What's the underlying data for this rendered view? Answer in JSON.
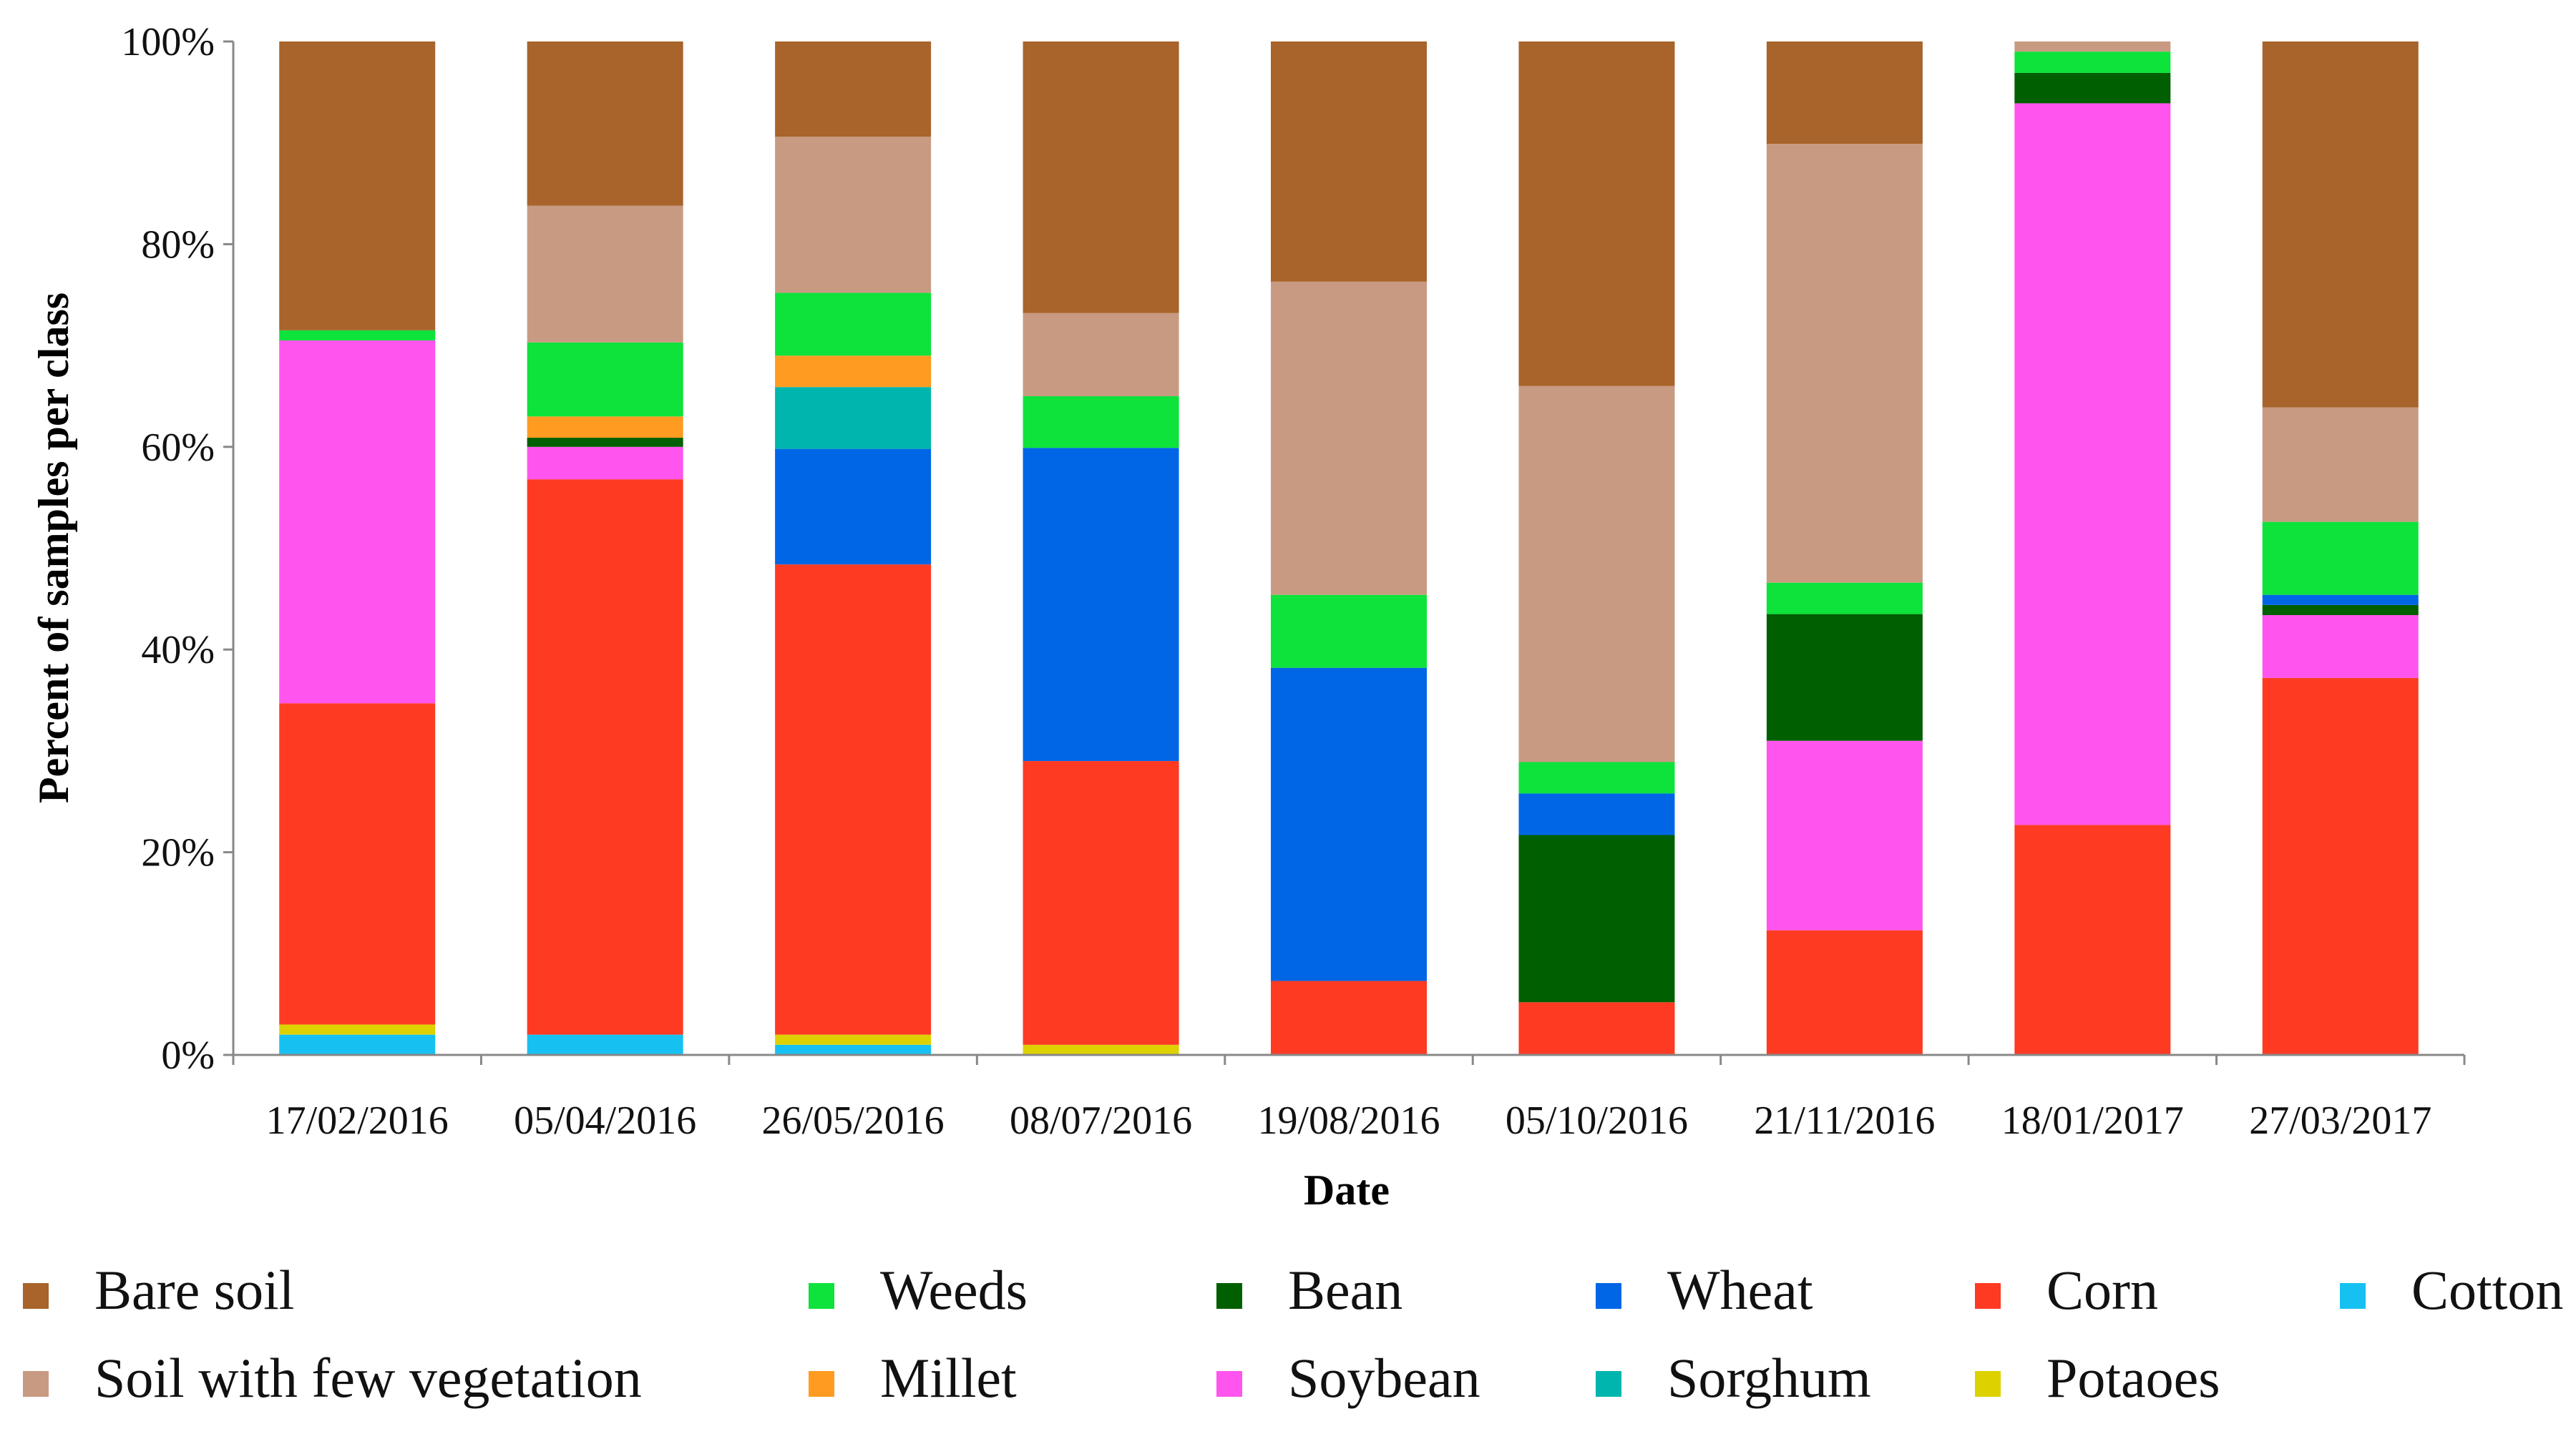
{
  "chart_data": {
    "type": "bar",
    "stacked": true,
    "title": "",
    "xlabel": "Date",
    "ylabel": "Percent of samples per class",
    "ylim": [
      0,
      100
    ],
    "yticks": [
      "0%",
      "20%",
      "40%",
      "60%",
      "80%",
      "100%"
    ],
    "legend_position": "bottom",
    "categories": [
      "17/02/2016",
      "05/04/2016",
      "26/05/2016",
      "08/07/2016",
      "19/08/2016",
      "05/10/2016",
      "21/11/2016",
      "18/01/2017",
      "27/03/2017"
    ],
    "series": [
      {
        "name": "Cotton",
        "color": "#16C1F2",
        "values": [
          2,
          2,
          1,
          0,
          0,
          0,
          0,
          0,
          0
        ]
      },
      {
        "name": "Potaoes",
        "color": "#DDD200",
        "values": [
          1,
          0,
          1,
          1,
          0,
          0,
          0,
          0,
          0
        ]
      },
      {
        "name": "Corn",
        "color": "#FF3A22",
        "values": [
          31.7,
          54.8,
          46.4,
          28,
          7.3,
          5.2,
          12.3,
          22.7,
          37.2
        ]
      },
      {
        "name": "Soybean",
        "color": "#FF55EE",
        "values": [
          35.8,
          3.2,
          0,
          0,
          0,
          0,
          18.7,
          71.2,
          6.2
        ]
      },
      {
        "name": "Bean",
        "color": "#005F00",
        "values": [
          0,
          0.9,
          0,
          0,
          0,
          16.5,
          12.5,
          3,
          1
        ]
      },
      {
        "name": "Wheat",
        "color": "#0066E6",
        "values": [
          0,
          0,
          11.4,
          30.9,
          30.9,
          4.1,
          0,
          0,
          1
        ]
      },
      {
        "name": "Sorghum",
        "color": "#00B5AD",
        "values": [
          0,
          0,
          6.1,
          0,
          0,
          0,
          0,
          0,
          0
        ]
      },
      {
        "name": "Millet",
        "color": "#FF9B21",
        "values": [
          0,
          2.1,
          3.1,
          0,
          0,
          0,
          0,
          0,
          0
        ]
      },
      {
        "name": "Weeds",
        "color": "#0DE33A",
        "values": [
          1,
          7.3,
          6.2,
          5.1,
          7.2,
          3.1,
          3.1,
          2.1,
          7.2
        ]
      },
      {
        "name": "Soil with few vegetation",
        "color": "#C99A82",
        "values": [
          0,
          13.5,
          15.4,
          8.2,
          30.9,
          37.1,
          43.3,
          1,
          11.3
        ]
      },
      {
        "name": "Bare soil",
        "color": "#A8642A",
        "values": [
          28.5,
          16.2,
          9.4,
          26.8,
          23.7,
          34,
          10.1,
          0,
          36.1
        ]
      }
    ],
    "legend_order": [
      "Bare soil",
      "Weeds",
      "Bean",
      "Wheat",
      "Corn",
      "Cotton",
      "Soil with few vegetation",
      "Millet",
      "Soybean",
      "Sorghum",
      "Potaoes"
    ]
  }
}
